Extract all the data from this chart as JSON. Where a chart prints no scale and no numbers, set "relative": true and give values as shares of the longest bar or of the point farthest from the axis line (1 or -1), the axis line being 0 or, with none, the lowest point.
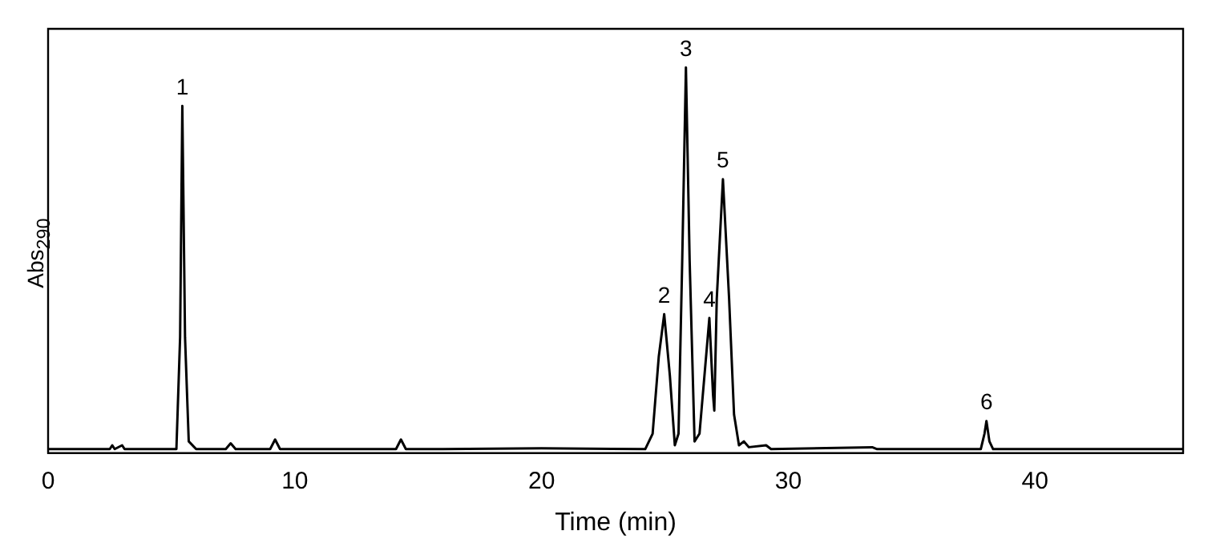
{
  "chart_data": {
    "type": "line",
    "relative": true,
    "xlabel": "Time (min)",
    "ylabel": "Abs$_{290}$",
    "color": "#000000",
    "marker": "none",
    "legend": false,
    "grid": false,
    "xlim": [
      0,
      46
    ],
    "xticks": [
      0,
      10,
      20,
      30,
      40
    ],
    "x": [
      0,
      2.5,
      2.6,
      2.7,
      3.0,
      3.1,
      5.2,
      5.35,
      5.44,
      5.55,
      5.7,
      6,
      7.2,
      7.4,
      7.6,
      9.0,
      9.2,
      9.4,
      14.1,
      14.3,
      14.5,
      16,
      20,
      24.2,
      24.5,
      24.75,
      24.97,
      25.2,
      25.4,
      25.55,
      25.7,
      25.85,
      26.0,
      26.2,
      26.4,
      26.6,
      26.8,
      26.95,
      27.0,
      27.1,
      27.35,
      27.6,
      27.8,
      28.0,
      28.2,
      28.4,
      29.1,
      29.3,
      33.4,
      33.6,
      37.8,
      37.95,
      38.03,
      38.15,
      38.3,
      46
    ],
    "values": [
      0.01,
      0.01,
      0.02,
      0.01,
      0.02,
      0.01,
      0.01,
      0.3,
      0.9,
      0.3,
      0.03,
      0.01,
      0.01,
      0.025,
      0.01,
      0.01,
      0.035,
      0.01,
      0.01,
      0.035,
      0.01,
      0.01,
      0.012,
      0.01,
      0.05,
      0.25,
      0.36,
      0.2,
      0.02,
      0.05,
      0.5,
      1.0,
      0.5,
      0.03,
      0.05,
      0.2,
      0.35,
      0.15,
      0.11,
      0.4,
      0.71,
      0.4,
      0.1,
      0.02,
      0.03,
      0.015,
      0.02,
      0.01,
      0.015,
      0.01,
      0.01,
      0.05,
      0.083,
      0.03,
      0.01,
      0.01
    ],
    "annotations": [
      {
        "text": "1",
        "x": 5.44,
        "y": 0.9
      },
      {
        "text": "2",
        "x": 24.97,
        "y": 0.36
      },
      {
        "text": "3",
        "x": 25.85,
        "y": 1.0
      },
      {
        "text": "4",
        "x": 26.8,
        "y": 0.35
      },
      {
        "text": "5",
        "x": 27.35,
        "y": 0.71
      },
      {
        "text": "6",
        "x": 38.03,
        "y": 0.083
      }
    ]
  }
}
